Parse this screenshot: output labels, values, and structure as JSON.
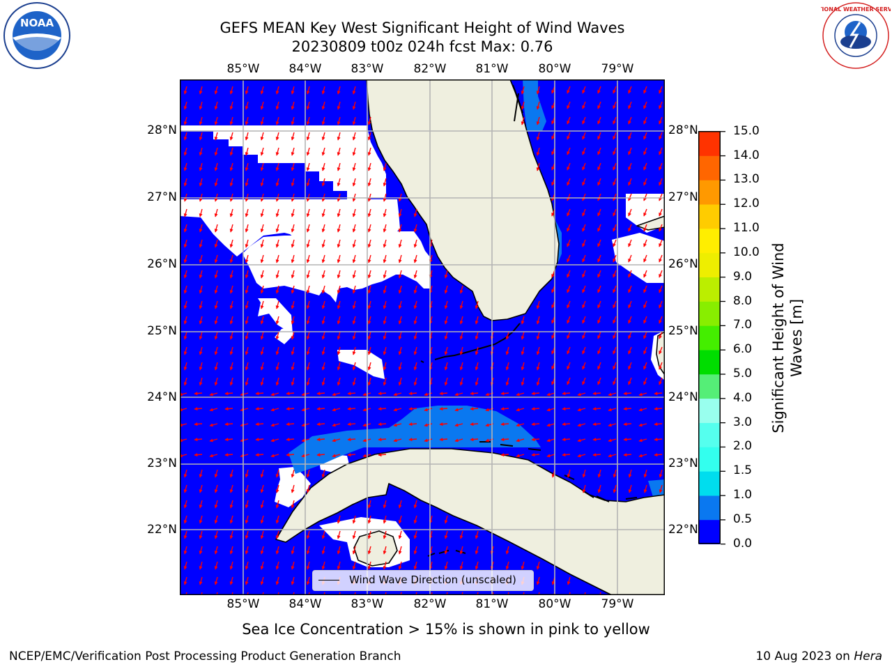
{
  "title": {
    "line1": "GEFS MEAN Key West Significant Height of Wind Waves",
    "line2": "20230809 t00z 024h fcst   Max: 0.76"
  },
  "map": {
    "lon_labels": [
      "85°W",
      "84°W",
      "83°W",
      "82°W",
      "81°W",
      "80°W",
      "79°W"
    ],
    "lat_labels": [
      "28°N",
      "27°N",
      "26°N",
      "25°N",
      "24°N",
      "23°N",
      "22°N"
    ],
    "colors": {
      "ocean_low": "#0000ff",
      "ocean_mid": "#0a78f0",
      "land": "#efefdf",
      "masked": "#ffffff",
      "arrow": "#ff0000",
      "grid": "#b4b4b4",
      "coast": "#000000"
    }
  },
  "legend": {
    "label": "Wind Wave Direction (unscaled)"
  },
  "colorbar": {
    "label_line1": "Significant Height of Wind",
    "label_line2": "Waves [m]",
    "ticks": [
      "0.0",
      "0.5",
      "1.0",
      "1.5",
      "2.0",
      "3.0",
      "4.0",
      "5.0",
      "6.0",
      "7.0",
      "8.0",
      "9.0",
      "10.0",
      "11.0",
      "12.0",
      "13.0",
      "14.0",
      "15.0"
    ],
    "colors": [
      "#0000ff",
      "#0a78f0",
      "#00ddee",
      "#33ffee",
      "#55ffee",
      "#99ffee",
      "#55ee77",
      "#00dd00",
      "#44ee00",
      "#88ee00",
      "#bbee00",
      "#eeee00",
      "#ffee00",
      "#ffcc00",
      "#ff9900",
      "#ff6600",
      "#ff3300"
    ]
  },
  "caption": "Sea Ice Concentration > 15% is shown in pink to yellow",
  "footer": {
    "left": "NCEP/EMC/Verification Post Processing Product Generation Branch",
    "date": "10 Aug 2023 on ",
    "host": "Hera"
  },
  "logos": {
    "noaa": "NOAA",
    "nws": "NATIONAL WEATHER SERVICE",
    "nws_left_icon": "noaa-logo",
    "nws_right_icon": "nws-logo"
  }
}
